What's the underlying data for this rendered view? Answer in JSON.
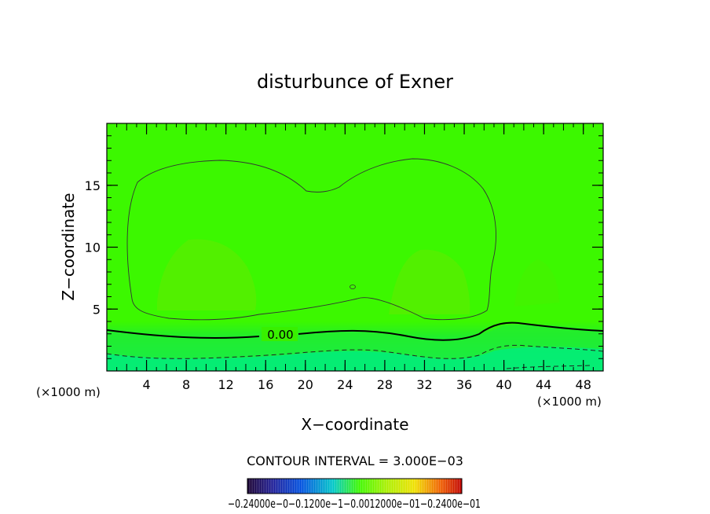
{
  "chart_data": {
    "type": "heatmap",
    "title": "disturbunce of Exner",
    "xlabel": "X−coordinate",
    "ylabel": "Z−coordinate",
    "x_unit_left": "(×1000 m)",
    "x_unit_right": "(×1000 m)",
    "xlim": [
      0,
      50
    ],
    "ylim": [
      0,
      20
    ],
    "x_ticks": [
      4,
      8,
      12,
      16,
      20,
      24,
      28,
      32,
      36,
      40,
      44,
      48
    ],
    "y_ticks": [
      5,
      10,
      15
    ],
    "contour_interval_text": "CONTOUR INTERVAL = 3.000E−03",
    "contour_label": "0.00",
    "colorbar": {
      "min_label": "−0.24000e−01",
      "labels_overlap": [
        "−0.1200e−01",
        "−0.0012000e−01",
        "0.12000e−01",
        "0.2400e−01"
      ],
      "max_label": "0.2400e−01",
      "label_line": "−0.24000e−0−0.1200e−1−0.0012000e−01−0.2400e−01"
    },
    "colors": {
      "field_main": "#3cf800",
      "field_light": "#56ee00",
      "field_low": "#22ee3c",
      "field_bottom": "#00ee8a"
    }
  }
}
